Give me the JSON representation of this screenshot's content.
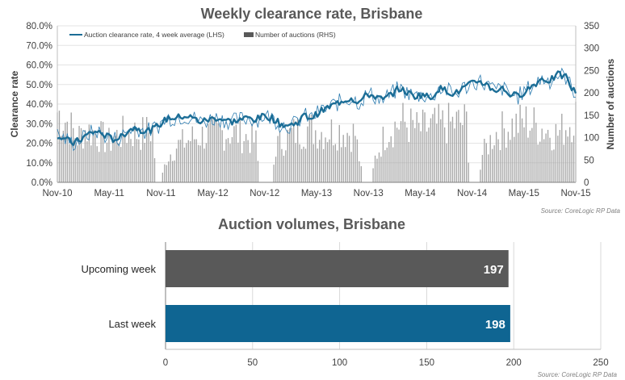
{
  "chart_data": [
    {
      "type": "bar+line",
      "title": "Weekly clearance rate, Brisbane",
      "ylabel_left": "Clearance rate",
      "ylabel_right": "Number of auctions",
      "x_tick_labels": [
        "Nov-10",
        "May-11",
        "Nov-11",
        "May-12",
        "Nov-12",
        "May-13",
        "Nov-13",
        "May-14",
        "Nov-14",
        "May-15",
        "Nov-15"
      ],
      "y_left_ticks": [
        "0.0%",
        "10.0%",
        "20.0%",
        "30.0%",
        "40.0%",
        "50.0%",
        "60.0%",
        "70.0%",
        "80.0%"
      ],
      "y_right_ticks": [
        "0",
        "50",
        "100",
        "150",
        "200",
        "250",
        "300",
        "350"
      ],
      "ylim_left": [
        0,
        0.8
      ],
      "ylim_right": [
        0,
        350
      ],
      "legend": [
        "Auction clearance rate, 4 week average (LHS)",
        "Number of auctions (RHS)"
      ],
      "source": "Source: CoreLogic  RP Data",
      "series_colors": {
        "line": "#1b6d96",
        "bars": "#a6a6a6"
      },
      "weeks": 262,
      "line_points": [
        [
          0,
          0.24
        ],
        [
          4,
          0.22
        ],
        [
          8,
          0.2
        ],
        [
          12,
          0.22
        ],
        [
          16,
          0.25
        ],
        [
          20,
          0.26
        ],
        [
          24,
          0.24
        ],
        [
          28,
          0.22
        ],
        [
          32,
          0.23
        ],
        [
          36,
          0.27
        ],
        [
          40,
          0.28
        ],
        [
          44,
          0.26
        ],
        [
          48,
          0.27
        ],
        [
          52,
          0.3
        ],
        [
          56,
          0.33
        ],
        [
          60,
          0.33
        ],
        [
          64,
          0.34
        ],
        [
          68,
          0.33
        ],
        [
          72,
          0.31
        ],
        [
          76,
          0.32
        ],
        [
          80,
          0.33
        ],
        [
          84,
          0.32
        ],
        [
          88,
          0.31
        ],
        [
          92,
          0.32
        ],
        [
          96,
          0.33
        ],
        [
          100,
          0.32
        ],
        [
          104,
          0.34
        ],
        [
          108,
          0.33
        ],
        [
          112,
          0.3
        ],
        [
          116,
          0.29
        ],
        [
          120,
          0.3
        ],
        [
          124,
          0.34
        ],
        [
          128,
          0.33
        ],
        [
          132,
          0.36
        ],
        [
          136,
          0.38
        ],
        [
          140,
          0.4
        ],
        [
          144,
          0.42
        ],
        [
          148,
          0.43
        ],
        [
          152,
          0.41
        ],
        [
          156,
          0.45
        ],
        [
          160,
          0.44
        ],
        [
          164,
          0.42
        ],
        [
          168,
          0.45
        ],
        [
          172,
          0.48
        ],
        [
          176,
          0.46
        ],
        [
          180,
          0.44
        ],
        [
          184,
          0.45
        ],
        [
          188,
          0.43
        ],
        [
          192,
          0.48
        ],
        [
          196,
          0.47
        ],
        [
          200,
          0.45
        ],
        [
          204,
          0.48
        ],
        [
          208,
          0.5
        ],
        [
          212,
          0.52
        ],
        [
          216,
          0.5
        ],
        [
          220,
          0.47
        ],
        [
          224,
          0.48
        ],
        [
          228,
          0.45
        ],
        [
          232,
          0.44
        ],
        [
          236,
          0.47
        ],
        [
          240,
          0.5
        ],
        [
          244,
          0.53
        ],
        [
          248,
          0.52
        ],
        [
          252,
          0.55
        ],
        [
          256,
          0.54
        ],
        [
          259,
          0.48
        ],
        [
          261,
          0.46
        ]
      ],
      "bar_levels": [
        [
          0,
          175
        ],
        [
          5,
          150
        ],
        [
          10,
          110
        ],
        [
          14,
          130
        ],
        [
          20,
          120
        ],
        [
          26,
          100
        ],
        [
          30,
          115
        ],
        [
          36,
          125
        ],
        [
          42,
          120
        ],
        [
          48,
          130
        ],
        [
          50,
          0
        ],
        [
          52,
          0
        ],
        [
          55,
          60
        ],
        [
          60,
          90
        ],
        [
          68,
          110
        ],
        [
          76,
          120
        ],
        [
          84,
          125
        ],
        [
          92,
          120
        ],
        [
          100,
          100
        ],
        [
          102,
          0
        ],
        [
          108,
          0
        ],
        [
          110,
          90
        ],
        [
          118,
          120
        ],
        [
          126,
          135
        ],
        [
          134,
          125
        ],
        [
          142,
          130
        ],
        [
          150,
          120
        ],
        [
          154,
          0
        ],
        [
          158,
          0
        ],
        [
          160,
          60
        ],
        [
          166,
          130
        ],
        [
          174,
          150
        ],
        [
          182,
          130
        ],
        [
          190,
          140
        ],
        [
          198,
          145
        ],
        [
          206,
          150
        ],
        [
          208,
          0
        ],
        [
          212,
          0
        ],
        [
          214,
          70
        ],
        [
          220,
          120
        ],
        [
          228,
          140
        ],
        [
          236,
          150
        ],
        [
          244,
          135
        ],
        [
          252,
          120
        ],
        [
          258,
          150
        ],
        [
          261,
          170
        ]
      ]
    },
    {
      "type": "bar",
      "orientation": "horizontal",
      "title": "Auction volumes, Brisbane",
      "categories": [
        "Upcoming week",
        "Last week"
      ],
      "values": [
        197,
        198
      ],
      "value_labels": [
        "197",
        "198"
      ],
      "colors": [
        "#595959",
        "#0f6592"
      ],
      "xlim": [
        0,
        250
      ],
      "x_ticks": [
        "0",
        "50",
        "100",
        "150",
        "200",
        "250"
      ],
      "source": "Source: CoreLogic  RP Data"
    }
  ]
}
